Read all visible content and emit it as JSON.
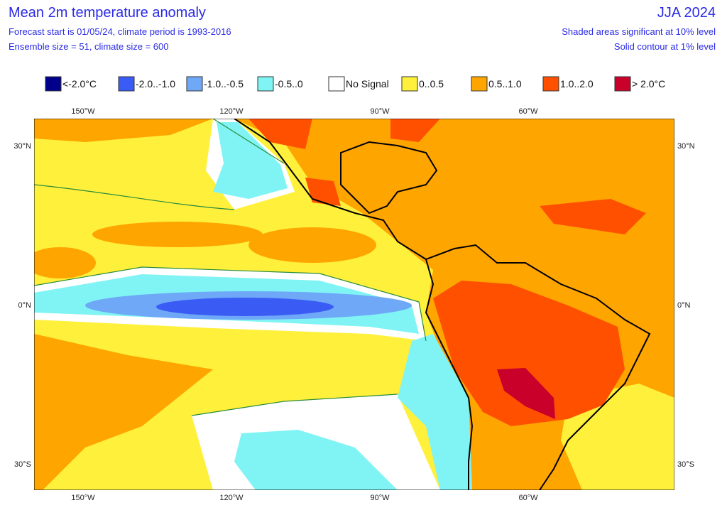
{
  "header": {
    "title": "Mean 2m temperature anomaly",
    "subtitle_lines": [
      "Forecast start is 01/05/24, climate period is 1993-2016",
      "Ensemble size = 51, climate size = 600"
    ],
    "period": "JJA 2024",
    "notes": [
      "Shaded areas significant at 10% level",
      "Solid contour at 1% level"
    ]
  },
  "legend": [
    {
      "label": "<-2.0°C",
      "color": "#00008b"
    },
    {
      "label": "-2.0..-1.0",
      "color": "#3a5cf5"
    },
    {
      "label": "-1.0..-0.5",
      "color": "#6ea8f7"
    },
    {
      "label": "-0.5..0",
      "color": "#80f4f4"
    },
    {
      "label": "No Signal",
      "color": "#ffffff"
    },
    {
      "label": "0..0.5",
      "color": "#fff03c"
    },
    {
      "label": "0.5..1.0",
      "color": "#ffa500"
    },
    {
      "label": "1.0..2.0",
      "color": "#ff5000"
    },
    {
      "label": "> 2.0°C",
      "color": "#c8002a"
    }
  ],
  "map": {
    "lon_labels": [
      "150°W",
      "120°W",
      "90°W",
      "60°W"
    ],
    "lat_labels": [
      "30°N",
      "0°N",
      "30°S"
    ]
  }
}
